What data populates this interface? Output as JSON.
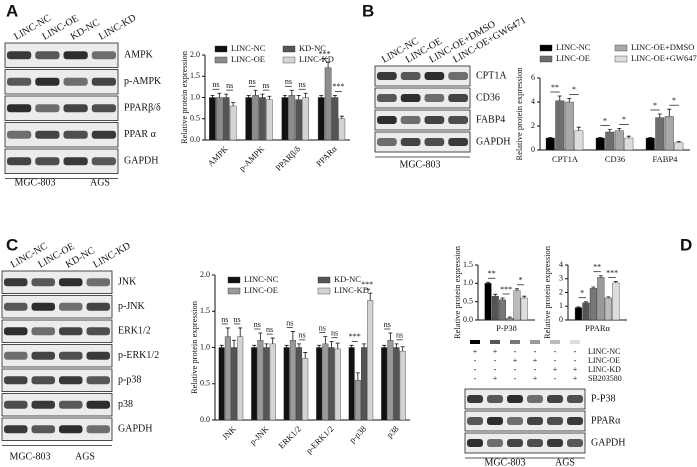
{
  "panel_labels": [
    "A",
    "B",
    "C",
    "D"
  ],
  "blots": [
    {
      "lanes": [
        "LINC-NC",
        "LINC-OE",
        "KD-NC",
        "LINC-KD"
      ],
      "rows": [
        "AMPK",
        "p-AMPK",
        "PPARβ/δ",
        "PPAR α",
        "GAPDH"
      ],
      "cells": [
        "MGC-803",
        "AGS"
      ]
    },
    {
      "lanes": [
        "LINC-NC",
        "LINC-OE",
        "LINC-OE+DMSO",
        "LINC-OE+GW6471"
      ],
      "rows": [
        "CPT1A",
        "CD36",
        "FABP4",
        "GAPDH"
      ],
      "cells": [
        "MGC-803"
      ]
    },
    {
      "lanes": [
        "LINC-NC",
        "LINC-OE",
        "KD-NC",
        "LINC-KD"
      ],
      "rows": [
        "JNK",
        "p-JNK",
        "ERK1/2",
        "p-ERK1/2",
        "p-p38",
        "p38",
        "GAPDH"
      ],
      "cells": [
        "MGC-803",
        "AGS"
      ]
    },
    {
      "treatments": {
        "names": [
          "LINC-NC",
          "LINC-OE",
          "LINC-KD",
          "SB203580"
        ],
        "marks": [
          [
            "+",
            "+",
            "-",
            "-",
            "-",
            "-"
          ],
          [
            "-",
            "-",
            "+",
            "+",
            "-",
            "-"
          ],
          [
            "-",
            "-",
            "-",
            "-",
            "+",
            "+"
          ],
          [
            "-",
            "+",
            "-",
            "+",
            "-",
            "+"
          ]
        ]
      },
      "rows": [
        "P-P38",
        "PPARα",
        "GAPDH"
      ],
      "cells": [
        "MGC-803",
        "AGS"
      ]
    }
  ],
  "chart_data": [
    {
      "type": "bar",
      "ylabel": "Relative protein expression",
      "categories": [
        "AMPK",
        "p-AMPK",
        "PPARβ/δ",
        "PPARα"
      ],
      "series": [
        {
          "name": "LINC-NC",
          "color": "#111111",
          "values": [
            1,
            1,
            1,
            1
          ],
          "errors": [
            0.05,
            0.05,
            0.05,
            0.05
          ]
        },
        {
          "name": "LINC-OE",
          "color": "#8c8c8c",
          "values": [
            1.0,
            1.05,
            1.05,
            1.7
          ],
          "errors": [
            0.1,
            0.12,
            0.12,
            0.12
          ]
        },
        {
          "name": "KD-NC",
          "color": "#555555",
          "values": [
            1.0,
            1.0,
            0.95,
            1.0
          ],
          "errors": [
            0.08,
            0.08,
            0.1,
            0.05
          ]
        },
        {
          "name": "LINC-KD",
          "color": "#d4d4d4",
          "values": [
            0.8,
            0.95,
            1.0,
            0.5
          ],
          "errors": [
            0.08,
            0.08,
            0.1,
            0.06
          ]
        }
      ],
      "significance": [
        [
          "ns",
          "ns"
        ],
        [
          "ns",
          "ns"
        ],
        [
          "ns",
          "ns"
        ],
        [
          "***",
          "***"
        ]
      ],
      "ylim": [
        0,
        2
      ],
      "yticks": [
        {
          "value": 0,
          "label": "0.0"
        },
        {
          "value": 0.5,
          "label": "0.5"
        },
        {
          "value": 1,
          "label": "1.0"
        },
        {
          "value": 1.5,
          "label": "1.5"
        },
        {
          "value": 2,
          "label": "2.0"
        }
      ]
    },
    {
      "type": "bar",
      "ylabel": "Relative protein expression",
      "categories": [
        "CPT1A",
        "CD36",
        "FABP4"
      ],
      "series": [
        {
          "name": "LINC-NC",
          "color": "#000000",
          "values": [
            1,
            1,
            1
          ],
          "errors": [
            0.05,
            0.05,
            0.05
          ]
        },
        {
          "name": "LINC-OE",
          "color": "#6e6e6e",
          "values": [
            4.1,
            1.5,
            2.7
          ],
          "errors": [
            0.4,
            0.2,
            0.3
          ]
        },
        {
          "name": "LINC-OE+DMSO",
          "color": "#a8a8a8",
          "values": [
            4.0,
            1.6,
            2.8
          ],
          "errors": [
            0.3,
            0.2,
            0.6
          ]
        },
        {
          "name": "LINC-OE+GW6471",
          "color": "#dcdcdc",
          "values": [
            1.6,
            1.0,
            0.6
          ],
          "errors": [
            0.3,
            0.15,
            0.1
          ]
        }
      ],
      "significance": [
        [
          "**",
          "*"
        ],
        [
          "*",
          "*"
        ],
        [
          "*",
          "*"
        ]
      ],
      "ylim": [
        0,
        6
      ],
      "yticks": [
        0,
        2,
        4,
        6
      ]
    },
    {
      "type": "bar",
      "ylabel": "Relative protein expression",
      "categories": [
        "JNK",
        "p-JNK",
        "ERK1/2",
        "p-ERK1/2",
        "p-p38",
        "p38"
      ],
      "series": [
        {
          "name": "LINC-NC",
          "color": "#111111",
          "values": [
            1,
            1,
            1,
            1,
            1,
            1
          ],
          "errors": [
            0.03,
            0.03,
            0.03,
            0.03,
            0.03,
            0.03
          ]
        },
        {
          "name": "LINC-OE",
          "color": "#9a9a9a",
          "values": [
            1.15,
            1.1,
            1.1,
            1.05,
            0.55,
            1.1
          ],
          "errors": [
            0.12,
            0.1,
            0.12,
            0.1,
            0.1,
            0.1
          ]
        },
        {
          "name": "KD-NC",
          "color": "#555555",
          "values": [
            1.0,
            1.0,
            1.0,
            1.0,
            1.0,
            1.0
          ],
          "errors": [
            0.1,
            0.05,
            0.05,
            0.08,
            0.05,
            0.05
          ]
        },
        {
          "name": "LINC-KD",
          "color": "#d4d4d4",
          "values": [
            1.15,
            1.05,
            0.85,
            0.98,
            1.65,
            0.95
          ],
          "errors": [
            0.12,
            0.08,
            0.08,
            0.08,
            0.1,
            0.06
          ]
        }
      ],
      "significance": [
        [
          "ns",
          "ns"
        ],
        [
          "ns",
          "ns"
        ],
        [
          "ns",
          "ns"
        ],
        [
          "ns",
          "ns"
        ],
        [
          "***",
          "***"
        ],
        [
          "ns",
          "ns"
        ]
      ],
      "ylim": [
        0,
        2
      ],
      "yticks": [
        {
          "value": 0,
          "label": "0.0"
        },
        {
          "value": 0.5,
          "label": "0.5"
        },
        {
          "value": 1,
          "label": "1.0"
        },
        {
          "value": 1.5,
          "label": "1.5"
        },
        {
          "value": 2,
          "label": "2.0"
        }
      ]
    },
    {
      "type": "bar",
      "ylabel": "Relative protein expression",
      "xlabel": "P-P38",
      "values": [
        1,
        0.65,
        0.55,
        0.05,
        0.8,
        0.6
      ],
      "errors": [
        0.03,
        0.05,
        0.05,
        0.03,
        0.05,
        0.05
      ],
      "colors": [
        "#000000",
        "#555555",
        "#777777",
        "#999999",
        "#bbbbbb",
        "#dddddd"
      ],
      "significance": [
        "**",
        "***",
        "*"
      ],
      "ylim": [
        0,
        1.5
      ],
      "yticks": [
        {
          "value": 0,
          "label": "0.0"
        },
        {
          "value": 0.5,
          "label": "0.5"
        },
        {
          "value": 1,
          "label": "1.0"
        },
        {
          "value": 1.5,
          "label": "1.5"
        }
      ]
    },
    {
      "type": "bar",
      "ylabel": "Relative protein expression",
      "xlabel": "PPARα",
      "values": [
        0.9,
        1.25,
        2.3,
        3.1,
        1.6,
        2.7
      ],
      "errors": [
        0.05,
        0.08,
        0.1,
        0.12,
        0.08,
        0.1
      ],
      "colors": [
        "#000000",
        "#555555",
        "#777777",
        "#999999",
        "#bbbbbb",
        "#dddddd"
      ],
      "significance": [
        "*",
        "**",
        "***"
      ],
      "ylim": [
        0,
        4
      ],
      "yticks": [
        0,
        1,
        2,
        3,
        4
      ]
    }
  ]
}
